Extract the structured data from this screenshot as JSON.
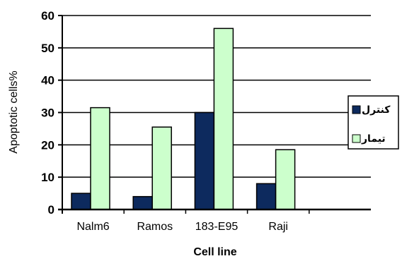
{
  "chart_data": {
    "type": "bar",
    "categories": [
      "Nalm6",
      "Ramos",
      "183-E95",
      "Raji",
      ""
    ],
    "series": [
      {
        "name": "کنترل",
        "color": "#0d2a5e",
        "values": [
          5,
          4,
          30,
          8,
          0
        ]
      },
      {
        "name": "تیمار",
        "color": "#ccffcc",
        "values": [
          31.5,
          25.5,
          56,
          18.5,
          0
        ]
      }
    ],
    "xlabel": "Cell line",
    "ylabel": "Apoptotic cells%",
    "ylim": [
      0,
      60
    ],
    "yticks": [
      0,
      10,
      20,
      30,
      40,
      50,
      60
    ],
    "grid": true,
    "legend_position": "right"
  }
}
